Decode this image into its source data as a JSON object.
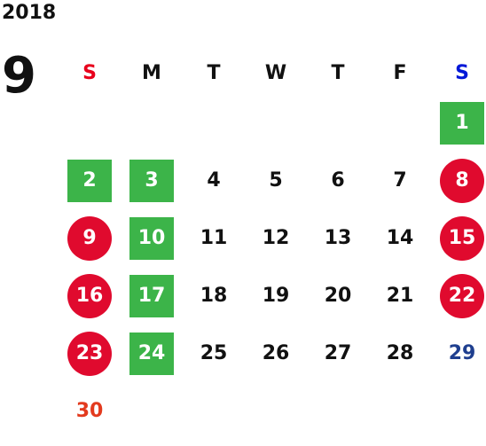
{
  "year": "2018",
  "month": "9",
  "weekdays": [
    "S",
    "M",
    "T",
    "W",
    "T",
    "F",
    "S"
  ],
  "colors": {
    "holiday_green": "#3cb449",
    "holiday_red": "#e00a2e",
    "sunday_header": "#e8001c",
    "saturday_header": "#0018d8",
    "saturday_text": "#1f3f8f",
    "sunday_text": "#e33a1e"
  },
  "days": [
    {
      "n": "1",
      "style": "green"
    },
    {
      "n": "2",
      "style": "green"
    },
    {
      "n": "3",
      "style": "green"
    },
    {
      "n": "4",
      "style": "plain"
    },
    {
      "n": "5",
      "style": "plain"
    },
    {
      "n": "6",
      "style": "plain"
    },
    {
      "n": "7",
      "style": "plain"
    },
    {
      "n": "8",
      "style": "red"
    },
    {
      "n": "9",
      "style": "red"
    },
    {
      "n": "10",
      "style": "green"
    },
    {
      "n": "11",
      "style": "plain"
    },
    {
      "n": "12",
      "style": "plain"
    },
    {
      "n": "13",
      "style": "plain"
    },
    {
      "n": "14",
      "style": "plain"
    },
    {
      "n": "15",
      "style": "red"
    },
    {
      "n": "16",
      "style": "red"
    },
    {
      "n": "17",
      "style": "green"
    },
    {
      "n": "18",
      "style": "plain"
    },
    {
      "n": "19",
      "style": "plain"
    },
    {
      "n": "20",
      "style": "plain"
    },
    {
      "n": "21",
      "style": "plain"
    },
    {
      "n": "22",
      "style": "red"
    },
    {
      "n": "23",
      "style": "red"
    },
    {
      "n": "24",
      "style": "green"
    },
    {
      "n": "25",
      "style": "plain"
    },
    {
      "n": "26",
      "style": "plain"
    },
    {
      "n": "27",
      "style": "plain"
    },
    {
      "n": "28",
      "style": "plain"
    },
    {
      "n": "29",
      "style": "blue"
    },
    {
      "n": "30",
      "style": "redtxt"
    }
  ]
}
